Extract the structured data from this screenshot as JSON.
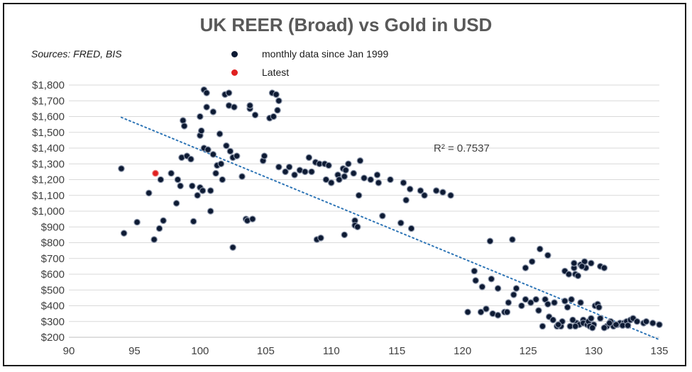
{
  "chart_data": {
    "type": "scatter",
    "title": "UK REER (Broad) vs Gold in USD",
    "sources": "Sources: FRED, BIS",
    "xlim": [
      90,
      135
    ],
    "ylim": [
      200,
      1800
    ],
    "x_ticks": [
      90,
      95,
      100,
      105,
      110,
      115,
      120,
      125,
      130,
      135
    ],
    "y_ticks": [
      200,
      300,
      400,
      500,
      600,
      700,
      800,
      900,
      1000,
      1100,
      1200,
      1300,
      1400,
      1500,
      1600,
      1700,
      1800
    ],
    "y_tick_labels": [
      "$200",
      "$300",
      "$400",
      "$500",
      "$600",
      "$700",
      "$800",
      "$900",
      "$1,000",
      "$1,100",
      "$1,200",
      "$1,300",
      "$1,400",
      "$1,500",
      "$1,600",
      "$1,700",
      "$1,800"
    ],
    "grid": "horizontal",
    "legend": [
      {
        "label": "monthly data since Jan 1999",
        "color": "#0d1a33"
      },
      {
        "label": "Latest",
        "color": "#e02020"
      }
    ],
    "annotation": "R² = 0.7537",
    "trendline": {
      "x": [
        94,
        135
      ],
      "y": [
        1595,
        185
      ],
      "color": "#2e75b6",
      "style": "dotted"
    },
    "series": [
      {
        "name": "monthly data since Jan 1999",
        "color": "#0d1a33",
        "points": [
          [
            94.0,
            1270
          ],
          [
            94.2,
            860
          ],
          [
            95.2,
            930
          ],
          [
            96.1,
            1115
          ],
          [
            96.5,
            820
          ],
          [
            96.9,
            890
          ],
          [
            97.0,
            1200
          ],
          [
            97.2,
            940
          ],
          [
            97.8,
            1240
          ],
          [
            98.2,
            1050
          ],
          [
            98.3,
            1200
          ],
          [
            98.5,
            1160
          ],
          [
            98.6,
            1340
          ],
          [
            98.7,
            1575
          ],
          [
            98.8,
            1540
          ],
          [
            99.0,
            1350
          ],
          [
            99.3,
            1330
          ],
          [
            99.4,
            1160
          ],
          [
            99.5,
            935
          ],
          [
            99.8,
            1100
          ],
          [
            100.0,
            1600
          ],
          [
            100.0,
            1150
          ],
          [
            100.0,
            1480
          ],
          [
            100.1,
            1510
          ],
          [
            100.2,
            1130
          ],
          [
            100.3,
            1400
          ],
          [
            100.3,
            1770
          ],
          [
            100.5,
            1750
          ],
          [
            100.5,
            1660
          ],
          [
            100.6,
            1390
          ],
          [
            100.8,
            1130
          ],
          [
            100.8,
            1000
          ],
          [
            101.0,
            1630
          ],
          [
            101.0,
            1360
          ],
          [
            101.2,
            1240
          ],
          [
            101.3,
            1290
          ],
          [
            101.5,
            1490
          ],
          [
            101.6,
            1300
          ],
          [
            101.7,
            1200
          ],
          [
            101.9,
            1740
          ],
          [
            102.0,
            1415
          ],
          [
            102.2,
            1670
          ],
          [
            102.2,
            1750
          ],
          [
            102.3,
            1380
          ],
          [
            102.5,
            1340
          ],
          [
            102.5,
            770
          ],
          [
            102.6,
            1660
          ],
          [
            102.8,
            1350
          ],
          [
            103.2,
            1220
          ],
          [
            103.5,
            950
          ],
          [
            103.6,
            940
          ],
          [
            103.8,
            1650
          ],
          [
            103.8,
            1670
          ],
          [
            104.0,
            950
          ],
          [
            104.2,
            1610
          ],
          [
            104.8,
            1320
          ],
          [
            104.9,
            1350
          ],
          [
            105.3,
            1590
          ],
          [
            105.5,
            1750
          ],
          [
            105.6,
            1600
          ],
          [
            105.8,
            1740
          ],
          [
            105.9,
            1640
          ],
          [
            106.0,
            1700
          ],
          [
            106.0,
            1280
          ],
          [
            106.5,
            1250
          ],
          [
            106.8,
            1280
          ],
          [
            107.2,
            1230
          ],
          [
            107.6,
            1260
          ],
          [
            108.0,
            1250
          ],
          [
            108.3,
            1340
          ],
          [
            108.5,
            1250
          ],
          [
            108.8,
            1310
          ],
          [
            108.9,
            820
          ],
          [
            109.1,
            1300
          ],
          [
            109.2,
            830
          ],
          [
            109.5,
            1300
          ],
          [
            109.6,
            1200
          ],
          [
            109.8,
            1290
          ],
          [
            110.0,
            1180
          ],
          [
            110.5,
            1230
          ],
          [
            110.6,
            1200
          ],
          [
            110.9,
            1270
          ],
          [
            111.0,
            1220
          ],
          [
            111.0,
            850
          ],
          [
            111.1,
            1260
          ],
          [
            111.3,
            1300
          ],
          [
            111.7,
            1240
          ],
          [
            111.8,
            940
          ],
          [
            111.8,
            910
          ],
          [
            112.0,
            900
          ],
          [
            112.1,
            1100
          ],
          [
            112.2,
            1320
          ],
          [
            112.5,
            1210
          ],
          [
            113.0,
            1200
          ],
          [
            113.5,
            1230
          ],
          [
            113.6,
            1180
          ],
          [
            113.9,
            970
          ],
          [
            114.5,
            1200
          ],
          [
            115.3,
            925
          ],
          [
            115.5,
            1180
          ],
          [
            115.7,
            1070
          ],
          [
            116.0,
            1140
          ],
          [
            116.1,
            890
          ],
          [
            116.8,
            1130
          ],
          [
            117.1,
            1100
          ],
          [
            118.0,
            1130
          ],
          [
            118.5,
            1120
          ],
          [
            119.1,
            1100
          ],
          [
            120.4,
            360
          ],
          [
            120.9,
            620
          ],
          [
            121.0,
            560
          ],
          [
            121.4,
            360
          ],
          [
            121.8,
            380
          ],
          [
            122.1,
            810
          ],
          [
            122.2,
            570
          ],
          [
            122.3,
            350
          ],
          [
            122.7,
            340
          ],
          [
            123.2,
            360
          ],
          [
            123.4,
            360
          ],
          [
            123.5,
            420
          ],
          [
            123.8,
            820
          ],
          [
            123.9,
            470
          ],
          [
            124.1,
            510
          ],
          [
            124.5,
            400
          ],
          [
            124.8,
            440
          ],
          [
            124.8,
            640
          ],
          [
            125.2,
            420
          ],
          [
            125.3,
            680
          ],
          [
            125.6,
            440
          ],
          [
            125.8,
            370
          ],
          [
            125.9,
            760
          ],
          [
            126.1,
            270
          ],
          [
            126.3,
            440
          ],
          [
            126.5,
            410
          ],
          [
            126.6,
            330
          ],
          [
            127.0,
            420
          ],
          [
            127.2,
            270
          ],
          [
            127.5,
            270
          ],
          [
            127.8,
            430
          ],
          [
            128.0,
            390
          ],
          [
            128.2,
            270
          ],
          [
            128.3,
            440
          ],
          [
            128.5,
            640
          ],
          [
            128.5,
            670
          ],
          [
            128.6,
            600
          ],
          [
            128.7,
            290
          ],
          [
            128.8,
            590
          ],
          [
            128.9,
            280
          ],
          [
            129.0,
            660
          ],
          [
            129.0,
            420
          ],
          [
            129.2,
            310
          ],
          [
            129.2,
            290
          ],
          [
            129.3,
            680
          ],
          [
            129.4,
            640
          ],
          [
            129.5,
            280
          ],
          [
            129.6,
            300
          ],
          [
            129.8,
            320
          ],
          [
            129.8,
            670
          ],
          [
            130.0,
            280
          ],
          [
            130.1,
            400
          ],
          [
            130.3,
            410
          ],
          [
            130.5,
            320
          ],
          [
            130.5,
            650
          ],
          [
            130.8,
            640
          ],
          [
            131.0,
            270
          ],
          [
            131.3,
            300
          ],
          [
            131.5,
            270
          ],
          [
            131.8,
            280
          ],
          [
            132.0,
            290
          ],
          [
            132.3,
            290
          ],
          [
            132.5,
            300
          ],
          [
            132.8,
            310
          ],
          [
            133.0,
            320
          ],
          [
            133.3,
            300
          ],
          [
            133.8,
            290
          ],
          [
            134.0,
            300
          ],
          [
            134.5,
            290
          ],
          [
            135.0,
            280
          ],
          [
            121.5,
            520
          ],
          [
            122.7,
            510
          ],
          [
            126.5,
            720
          ],
          [
            127.8,
            620
          ],
          [
            128.1,
            600
          ],
          [
            129.1,
            650
          ],
          [
            130.4,
            390
          ],
          [
            131.2,
            290
          ],
          [
            131.7,
            280
          ],
          [
            132.2,
            275
          ],
          [
            129.7,
            270
          ],
          [
            128.4,
            310
          ],
          [
            127.6,
            300
          ],
          [
            126.9,
            310
          ],
          [
            129.9,
            260
          ],
          [
            128.6,
            270
          ],
          [
            127.3,
            280
          ],
          [
            130.8,
            260
          ],
          [
            132.6,
            275
          ]
        ]
      },
      {
        "name": "Latest",
        "color": "#e02020",
        "points": [
          [
            96.6,
            1240
          ]
        ]
      }
    ]
  }
}
